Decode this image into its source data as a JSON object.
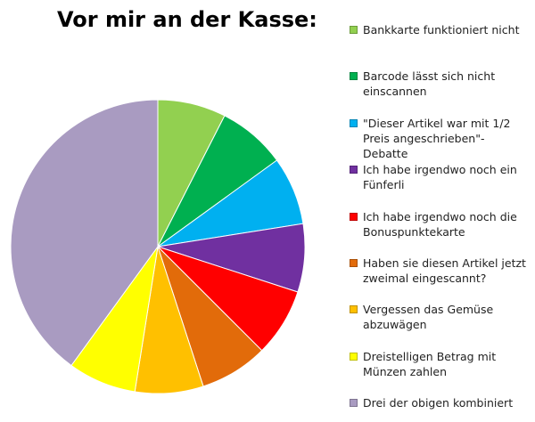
{
  "chart_data": {
    "type": "pie",
    "title": "Vor mir an der Kasse:",
    "categories": [
      "Bankkarte funktioniert nicht",
      "Barcode lässt sich nicht einscannen",
      "\"Dieser Artikel war mit 1/2 Preis angeschrieben\"-Debatte",
      "Ich habe irgendwo noch ein Fünferli",
      "Ich habe irgendwo noch die Bonuspunktekarte",
      "Haben sie diesen Artikel jetzt zweimal eingescannt?",
      "Vergessen das Gemüse abzuwägen",
      "Dreistelligen Betrag mit Münzen zahlen",
      "Drei der obigen kombiniert"
    ],
    "values": [
      7.5,
      7.5,
      7.5,
      7.5,
      7.5,
      7.5,
      7.5,
      7.5,
      40
    ],
    "colors": [
      "#92d050",
      "#00b050",
      "#00b0f0",
      "#7030a0",
      "#ff0000",
      "#e26b0a",
      "#ffc000",
      "#ffff00",
      "#a99bc1"
    ],
    "legend": "right"
  }
}
